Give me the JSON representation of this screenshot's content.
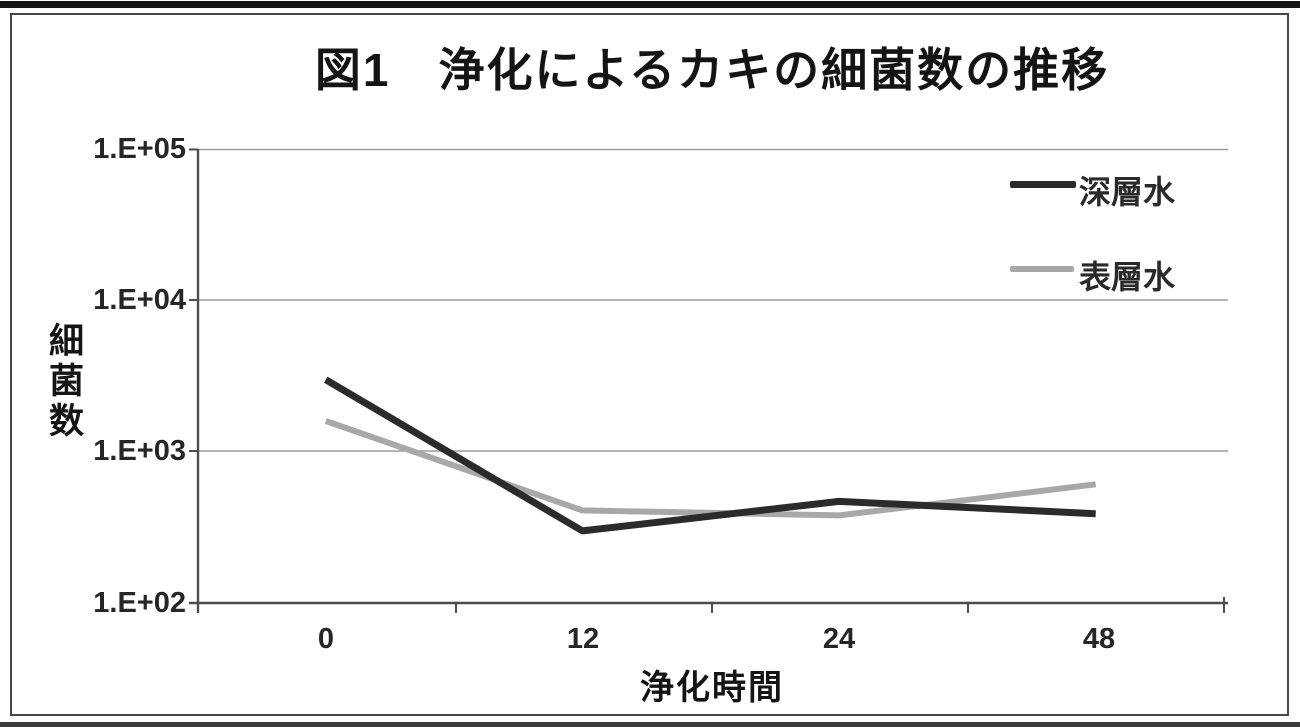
{
  "chart_data": {
    "type": "line",
    "title": "図1　浄化によるカキの細菌数の推移",
    "categories": [
      "0",
      "12",
      "24",
      "48"
    ],
    "series": [
      {
        "name": "深層水",
        "values": [
          3000,
          300,
          470,
          390
        ],
        "color": "#2b2b2b"
      },
      {
        "name": "表層水",
        "values": [
          1600,
          410,
          380,
          610
        ],
        "color": "#a8a8a8"
      }
    ],
    "xlabel": "浄化時間",
    "ylabel": "細菌数",
    "y_scale": "log",
    "ylim": [
      100,
      100000
    ],
    "y_tick_labels": [
      "1.E+05",
      "1.E+04",
      "1.E+03",
      "1.E+02"
    ],
    "grid": true,
    "legend_position": "top-right",
    "colors": {
      "gridline": "#9b9b9b",
      "axis": "#4d4d4d",
      "text": "#1e1e1e"
    }
  }
}
